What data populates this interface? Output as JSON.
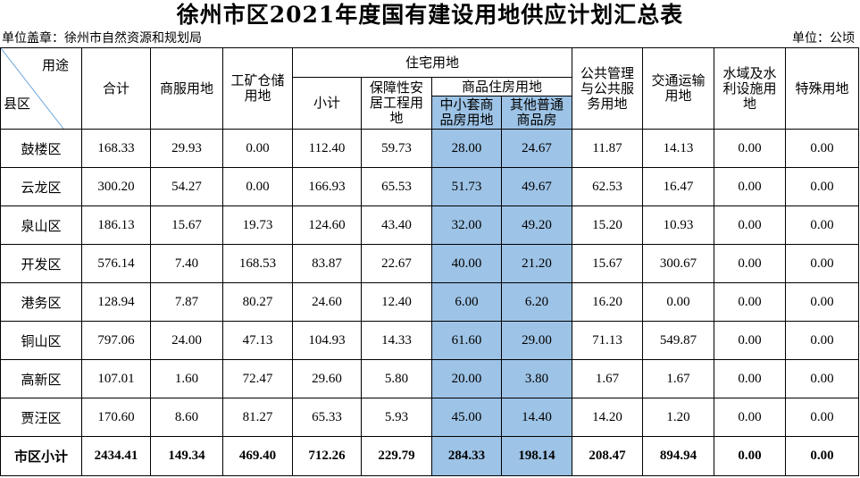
{
  "title": "徐州市区2021年度国有建设用地供应计划汇总表",
  "unit_left": "单位盖章：徐州市自然资源和规划局",
  "unit_right": "单位：公顷",
  "header": {
    "corner_top": "用途",
    "corner_bottom": "县区",
    "total": "合计",
    "commercial": "商服用地",
    "industrial": "工矿仓储用地",
    "residential": "住宅用地",
    "subtotal": "小计",
    "affordable": "保障性安居工程用地",
    "commodity": "商品住房用地",
    "small_medium": "中小套商品房用地",
    "other_housing": "其他普通商品房",
    "public": "公共管理与公共服务用地",
    "transport": "交通运输用地",
    "water": "水域及水利设施用地",
    "special": "特殊用地"
  },
  "rows": [
    {
      "district": "鼓楼区",
      "total": "168.33",
      "commercial": "29.93",
      "industrial": "0.00",
      "subtotal": "112.40",
      "affordable": "59.73",
      "small_medium": "28.00",
      "other_housing": "24.67",
      "public": "11.87",
      "transport": "14.13",
      "water": "0.00",
      "special": "0.00"
    },
    {
      "district": "云龙区",
      "total": "300.20",
      "commercial": "54.27",
      "industrial": "0.00",
      "subtotal": "166.93",
      "affordable": "65.53",
      "small_medium": "51.73",
      "other_housing": "49.67",
      "public": "62.53",
      "transport": "16.47",
      "water": "0.00",
      "special": "0.00"
    },
    {
      "district": "泉山区",
      "total": "186.13",
      "commercial": "15.67",
      "industrial": "19.73",
      "subtotal": "124.60",
      "affordable": "43.40",
      "small_medium": "32.00",
      "other_housing": "49.20",
      "public": "15.20",
      "transport": "10.93",
      "water": "0.00",
      "special": "0.00"
    },
    {
      "district": "开发区",
      "total": "576.14",
      "commercial": "7.40",
      "industrial": "168.53",
      "subtotal": "83.87",
      "affordable": "22.67",
      "small_medium": "40.00",
      "other_housing": "21.20",
      "public": "15.67",
      "transport": "300.67",
      "water": "0.00",
      "special": "0.00"
    },
    {
      "district": "港务区",
      "total": "128.94",
      "commercial": "7.87",
      "industrial": "80.27",
      "subtotal": "24.60",
      "affordable": "12.40",
      "small_medium": "6.00",
      "other_housing": "6.20",
      "public": "16.20",
      "transport": "0.00",
      "water": "0.00",
      "special": "0.00"
    },
    {
      "district": "铜山区",
      "total": "797.06",
      "commercial": "24.00",
      "industrial": "47.13",
      "subtotal": "104.93",
      "affordable": "14.33",
      "small_medium": "61.60",
      "other_housing": "29.00",
      "public": "71.13",
      "transport": "549.87",
      "water": "0.00",
      "special": "0.00"
    },
    {
      "district": "高新区",
      "total": "107.01",
      "commercial": "1.60",
      "industrial": "72.47",
      "subtotal": "29.60",
      "affordable": "5.80",
      "small_medium": "20.00",
      "other_housing": "3.80",
      "public": "1.67",
      "transport": "1.67",
      "water": "0.00",
      "special": "0.00"
    },
    {
      "district": "贾汪区",
      "total": "170.60",
      "commercial": "8.60",
      "industrial": "81.27",
      "subtotal": "65.33",
      "affordable": "5.93",
      "small_medium": "45.00",
      "other_housing": "14.40",
      "public": "14.20",
      "transport": "1.20",
      "water": "0.00",
      "special": "0.00"
    }
  ],
  "total_row": {
    "district": "市区小计",
    "total": "2434.41",
    "commercial": "149.34",
    "industrial": "469.40",
    "subtotal": "712.26",
    "affordable": "229.79",
    "small_medium": "284.33",
    "other_housing": "198.14",
    "public": "208.47",
    "transport": "894.94",
    "water": "0.00",
    "special": "0.00"
  },
  "colors": {
    "highlight": "#9dc3e6"
  }
}
